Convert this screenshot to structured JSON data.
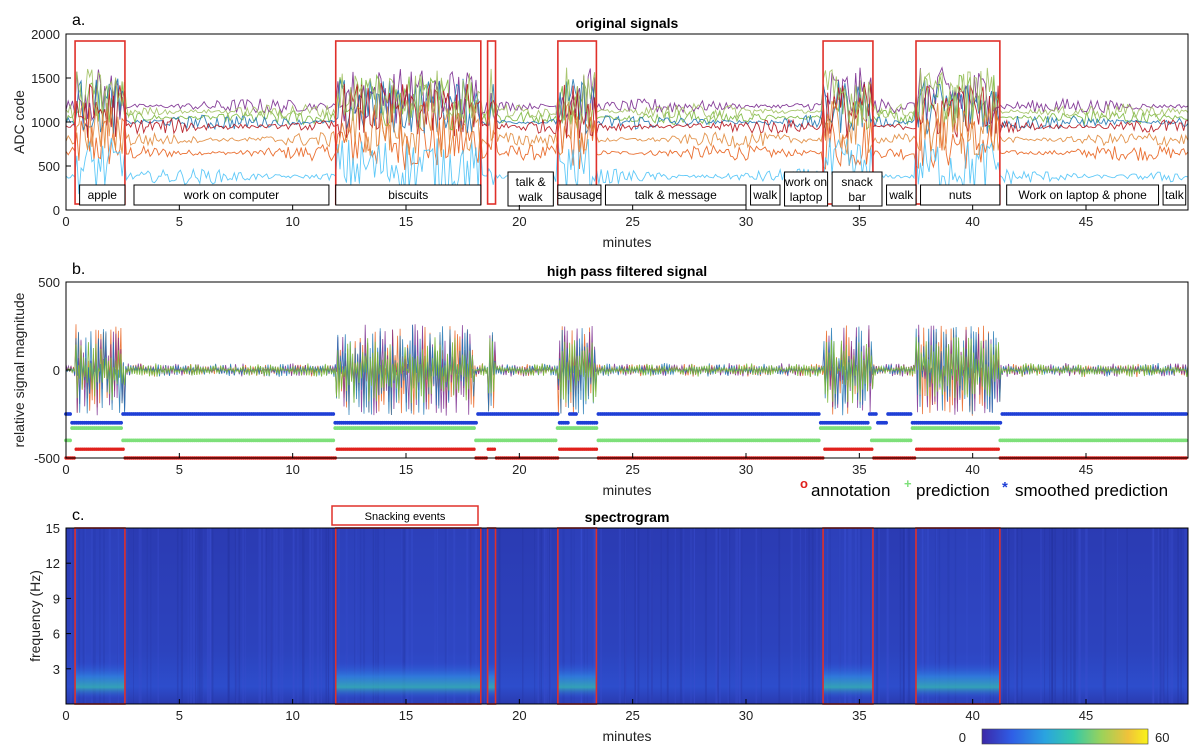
{
  "colors": {
    "axis": "#000000",
    "annotation_box": "#e0302a",
    "annotation": "#e0201c",
    "prediction": "#7ee07a",
    "smoothed": "#1f3fd6",
    "spectrogram_bg": "#2b3fb0"
  },
  "chart_data": [
    {
      "type": "line",
      "panel_label": "a.",
      "title": "original signals",
      "xlabel": "minutes",
      "ylabel": "ADC code",
      "xlim": [
        0,
        49.5
      ],
      "ylim": [
        0,
        2000
      ],
      "xticks": [
        0,
        5,
        10,
        15,
        20,
        25,
        30,
        35,
        40,
        45
      ],
      "yticks": [
        0,
        500,
        1000,
        1500,
        2000
      ],
      "series_colors": [
        "#e8601c",
        "#7ab83c",
        "#7a2b8f",
        "#1f77b4",
        "#4fc3f7",
        "#b5121b",
        "#e08a3c",
        "#a0c060"
      ],
      "series_baselines": [
        650,
        1050,
        1180,
        1000,
        380,
        950,
        800,
        1120
      ],
      "annotation_boxes": [
        [
          0.4,
          2.6
        ],
        [
          11.9,
          18.3
        ],
        [
          18.6,
          18.95
        ],
        [
          21.7,
          23.4
        ],
        [
          33.4,
          35.6
        ],
        [
          37.5,
          41.2
        ]
      ],
      "activities": [
        {
          "label": "apple",
          "start": 0.6,
          "end": 2.6
        },
        {
          "label": "work on computer",
          "start": 3.0,
          "end": 11.6
        },
        {
          "label": "biscuits",
          "start": 11.9,
          "end": 18.3
        },
        {
          "label": "talk &",
          "label2": "walk",
          "start": 19.5,
          "end": 21.5
        },
        {
          "label": "sausage",
          "start": 21.7,
          "end": 23.6
        },
        {
          "label": "talk & message",
          "start": 23.8,
          "end": 30.0
        },
        {
          "label": "walk",
          "start": 30.2,
          "end": 31.5
        },
        {
          "label": "work on",
          "label2": "laptop",
          "start": 31.7,
          "end": 33.6
        },
        {
          "label": "snack",
          "label2": "bar",
          "start": 33.8,
          "end": 36.0
        },
        {
          "label": "walk",
          "start": 36.2,
          "end": 37.5
        },
        {
          "label": "nuts",
          "start": 37.7,
          "end": 41.2
        },
        {
          "label": "Work on laptop & phone",
          "start": 41.5,
          "end": 48.2
        },
        {
          "label": "talk",
          "start": 48.4,
          "end": 49.4
        }
      ]
    },
    {
      "type": "line",
      "panel_label": "b.",
      "title": "high pass filtered signal",
      "xlabel": "minutes",
      "ylabel": "relative signal magnitude",
      "xlim": [
        0,
        49.5
      ],
      "ylim": [
        -500,
        500
      ],
      "xticks": [
        0,
        5,
        10,
        15,
        20,
        25,
        30,
        35,
        40,
        45
      ],
      "yticks": [
        -500,
        0,
        500
      ],
      "legend": [
        "annotation",
        "prediction",
        "smoothed prediction"
      ],
      "legend_markers": [
        "o",
        "+",
        "*"
      ],
      "levels": {
        "smoothed": [
          -250,
          -300
        ],
        "prediction": [
          -400,
          -330
        ],
        "annotation": [
          -500,
          -450
        ]
      },
      "eating_intervals": [
        [
          0.4,
          2.6
        ],
        [
          11.9,
          18.0
        ],
        [
          18.6,
          18.95
        ],
        [
          21.7,
          23.4
        ],
        [
          33.4,
          35.6
        ],
        [
          37.5,
          41.2
        ]
      ],
      "smoothed_intervals": [
        [
          0.2,
          2.5
        ],
        [
          11.8,
          18.1
        ],
        [
          21.7,
          22.2
        ],
        [
          22.5,
          23.4
        ],
        [
          33.3,
          35.4
        ],
        [
          35.8,
          36.2
        ],
        [
          37.3,
          41.3
        ]
      ],
      "prediction_intervals": [
        [
          0.2,
          2.5
        ],
        [
          11.8,
          18.0
        ],
        [
          21.6,
          23.4
        ],
        [
          33.3,
          35.5
        ],
        [
          37.3,
          41.2
        ]
      ]
    },
    {
      "type": "heatmap",
      "panel_label": "c.",
      "title": "spectrogram",
      "xlabel": "minutes",
      "ylabel": "frequency (Hz)",
      "xlim": [
        0,
        49.5
      ],
      "ylim": [
        0,
        15
      ],
      "xticks": [
        0,
        5,
        10,
        15,
        20,
        25,
        30,
        35,
        40,
        45
      ],
      "yticks": [
        3,
        6,
        9,
        12,
        15
      ],
      "annotation_label": "Snacking events",
      "annotation_boxes": [
        [
          0.4,
          2.6
        ],
        [
          11.9,
          18.3
        ],
        [
          18.6,
          18.95
        ],
        [
          21.7,
          23.4
        ],
        [
          33.4,
          35.6
        ],
        [
          37.5,
          41.2
        ]
      ],
      "colorbar": {
        "min": 0,
        "max": 60,
        "colors": [
          "#3b28a8",
          "#2f5ee6",
          "#2aa4e0",
          "#35c9a8",
          "#9bd25a",
          "#f0c23a",
          "#f9f31a"
        ]
      }
    }
  ]
}
